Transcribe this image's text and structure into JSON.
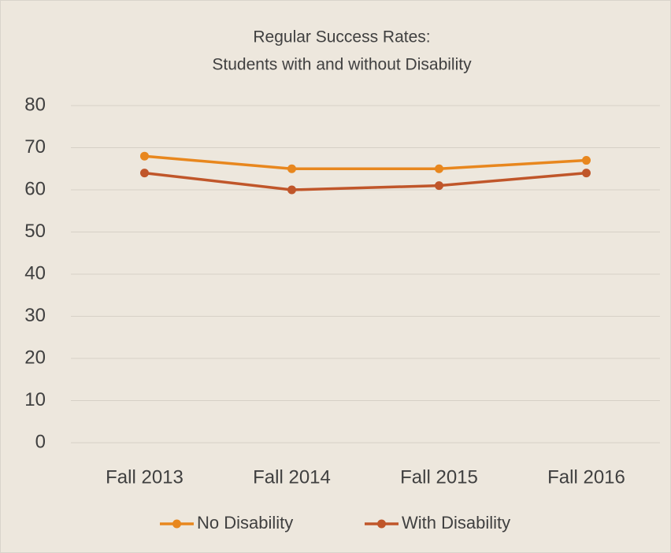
{
  "chart_data": {
    "type": "line",
    "title": [
      "Regular Success Rates:",
      "Students with and without Disability"
    ],
    "categories": [
      "Fall 2013",
      "Fall 2014",
      "Fall 2015",
      "Fall 2016"
    ],
    "series": [
      {
        "name": "No Disability",
        "color": "#e8871e",
        "values": [
          68,
          65,
          65,
          67
        ]
      },
      {
        "name": "With Disability",
        "color": "#c0562a",
        "values": [
          64,
          60,
          61,
          64
        ]
      }
    ],
    "ylim": [
      0,
      80
    ],
    "yticks": [
      0,
      10,
      20,
      30,
      40,
      50,
      60,
      70,
      80
    ],
    "grid": true,
    "legend": "bottom"
  }
}
